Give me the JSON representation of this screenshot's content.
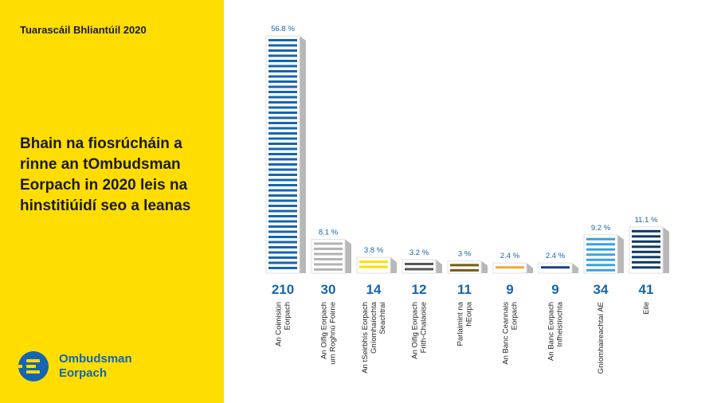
{
  "report_title": "Tuarascáil Bhliantúil 2020",
  "headline": "Bhain na fiosrúcháin a rinne an tOmbudsman Eorpach in 2020 leis na hinstitiúidí seo a leanas",
  "logo": {
    "line1": "Ombudsman",
    "line2": "Eorpach",
    "icon": "ombudsman-logo-icon"
  },
  "colors": {
    "background_panel": "#FFDD00",
    "brand_blue": "#1565b0",
    "shadow": "#b8b8b8"
  },
  "chart_data": {
    "type": "bar",
    "categories": [
      "An Coimisiún Eorpach",
      "An Oifig Eorpach um Roghnú Foirne",
      "An tSeirbhís Eorpach Gníomhaíochta Seachtraí",
      "An Oifig Eorpach Frith-Chalaoise",
      "Parlaimint na hEorpa",
      "An Banc Ceannais Eorpach",
      "An Banc Eorpach Infheistíochta",
      "Gníomhaireachtaí AE",
      "Eile"
    ],
    "label_lines": [
      [
        "An Coimisiún",
        "Eorpach"
      ],
      [
        "An Oifig Eorpach",
        "um Roghnú Foirne"
      ],
      [
        "An tSeirbhís Eorpach",
        "Gníomhaíochta",
        "Seachtraí"
      ],
      [
        "An Oifig Eorpach",
        "Frith-Chalaoise"
      ],
      [
        "Parlaimint na",
        "hEorpa"
      ],
      [
        "An Banc Ceannais",
        "Eorpach"
      ],
      [
        "An Banc Eorpach",
        "Infheistíochta"
      ],
      [
        "Gníomhaireachtaí AE"
      ],
      [
        "Eile"
      ]
    ],
    "values": [
      210,
      30,
      14,
      12,
      11,
      9,
      9,
      34,
      41
    ],
    "percent_labels": [
      "56.8 %",
      "8.1 %",
      "3.8 %",
      "3.2 %",
      "3 %",
      "2.4 %",
      "2.4 %",
      "9.2 %",
      "11.1 %"
    ],
    "colors": [
      "#1565b0",
      "#b3b3b3",
      "#ffdd00",
      "#555555",
      "#7a5a10",
      "#f0a833",
      "#1b3f8a",
      "#3da0dc",
      "#0d3a66"
    ],
    "ylim": [
      0,
      210
    ]
  }
}
